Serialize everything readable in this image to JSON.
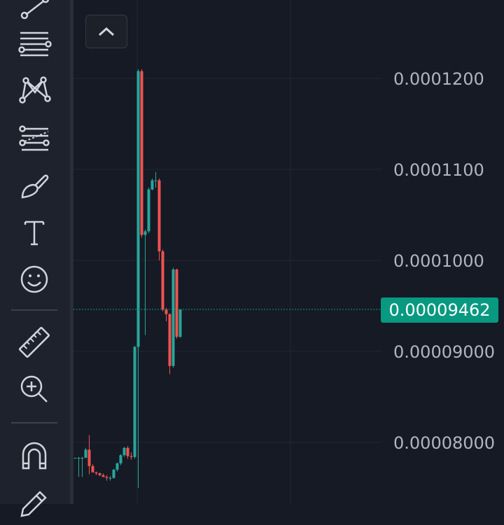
{
  "toolbar": {
    "tools": [
      {
        "icon": "trend-line-icon"
      },
      {
        "icon": "fib-retracement-icon"
      },
      {
        "icon": "pattern-icon"
      },
      {
        "icon": "forecast-icon"
      },
      {
        "icon": "brush-icon"
      },
      {
        "icon": "text-icon"
      },
      {
        "icon": "emoji-icon"
      },
      {
        "icon": "ruler-icon"
      },
      {
        "icon": "zoom-in-icon"
      },
      {
        "icon": "magnet-icon"
      },
      {
        "icon": "pencil-lock-icon"
      }
    ],
    "collapse_icon": "chevron-up-icon"
  },
  "colors": {
    "background": "#161a25",
    "up": "#26a69a",
    "down": "#ef5350",
    "price_line": "#089981",
    "grid": "#232733"
  },
  "current_price": "0.00009462",
  "chart_data": {
    "type": "candlestick",
    "y_tick_labels": [
      "0.0001200",
      "0.0001100",
      "0.0001000",
      "0.00009000",
      "0.00008000"
    ],
    "y_ticks": [
      0.00012,
      0.00011,
      0.0001,
      9e-05,
      8e-05
    ],
    "current_price": 9.462e-05,
    "candles": [
      {
        "o": 7.83e-05,
        "h": 7.83e-05,
        "l": 7.83e-05,
        "c": 7.83e-05
      },
      {
        "o": 7.83e-05,
        "h": 7.84e-05,
        "l": 7.62e-05,
        "c": 7.83e-05
      },
      {
        "o": 7.83e-05,
        "h": 7.84e-05,
        "l": 7.62e-05,
        "c": 7.83e-05
      },
      {
        "o": 7.83e-05,
        "h": 7.94e-05,
        "l": 7.83e-05,
        "c": 7.92e-05
      },
      {
        "o": 7.92e-05,
        "h": 8.08e-05,
        "l": 7.65e-05,
        "c": 7.74e-05
      },
      {
        "o": 7.74e-05,
        "h": 7.76e-05,
        "l": 7.68e-05,
        "c": 7.67e-05
      },
      {
        "o": 7.67e-05,
        "h": 7.68e-05,
        "l": 7.64e-05,
        "c": 7.66e-05
      },
      {
        "o": 7.66e-05,
        "h": 7.67e-05,
        "l": 7.63e-05,
        "c": 7.64e-05
      },
      {
        "o": 7.64e-05,
        "h": 7.66e-05,
        "l": 7.62e-05,
        "c": 7.62e-05
      },
      {
        "o": 7.62e-05,
        "h": 7.64e-05,
        "l": 7.58e-05,
        "c": 7.61e-05
      },
      {
        "o": 7.61e-05,
        "h": 7.63e-05,
        "l": 7.58e-05,
        "c": 7.61e-05
      },
      {
        "o": 7.61e-05,
        "h": 7.71e-05,
        "l": 7.6e-05,
        "c": 7.7e-05
      },
      {
        "o": 7.7e-05,
        "h": 7.78e-05,
        "l": 7.68e-05,
        "c": 7.77e-05
      },
      {
        "o": 7.77e-05,
        "h": 7.87e-05,
        "l": 7.75e-05,
        "c": 7.86e-05
      },
      {
        "o": 7.86e-05,
        "h": 7.95e-05,
        "l": 7.84e-05,
        "c": 7.94e-05
      },
      {
        "o": 7.94e-05,
        "h": 7.96e-05,
        "l": 7.82e-05,
        "c": 7.85e-05
      },
      {
        "o": 7.85e-05,
        "h": 7.89e-05,
        "l": 7.81e-05,
        "c": 7.84e-05
      },
      {
        "o": 7.84e-05,
        "h": 9.06e-05,
        "l": 7.82e-05,
        "c": 9.05e-05
      },
      {
        "o": 9.05e-05,
        "h": 0.000121,
        "l": 7.5e-05,
        "c": 0.0001208
      },
      {
        "o": 0.0001208,
        "h": 0.000121,
        "l": 0.0001025,
        "c": 0.0001028
      },
      {
        "o": 0.0001028,
        "h": 0.0001034,
        "l": 9.18e-05,
        "c": 0.0001032
      },
      {
        "o": 0.0001032,
        "h": 0.000108,
        "l": 0.000103,
        "c": 0.0001078
      },
      {
        "o": 0.0001078,
        "h": 0.000109,
        "l": 0.0001077,
        "c": 0.0001088
      },
      {
        "o": 0.0001088,
        "h": 0.0001097,
        "l": 0.000108,
        "c": 0.0001088
      },
      {
        "o": 0.0001088,
        "h": 0.000109,
        "l": 0.0001,
        "c": 0.000101
      },
      {
        "o": 0.000101,
        "h": 0.0001012,
        "l": 9.44e-05,
        "c": 9.46e-05
      },
      {
        "o": 9.46e-05,
        "h": 9.48e-05,
        "l": 9.33e-05,
        "c": 9.41e-05
      },
      {
        "o": 9.41e-05,
        "h": 9.42e-05,
        "l": 8.75e-05,
        "c": 8.84e-05
      },
      {
        "o": 8.84e-05,
        "h": 9.92e-05,
        "l": 8.82e-05,
        "c": 9.9e-05
      },
      {
        "o": 9.9e-05,
        "h": 9.91e-05,
        "l": 9.14e-05,
        "c": 9.16e-05
      },
      {
        "o": 9.16e-05,
        "h": 9.46e-05,
        "l": 9.15e-05,
        "c": 9.462e-05
      }
    ]
  }
}
